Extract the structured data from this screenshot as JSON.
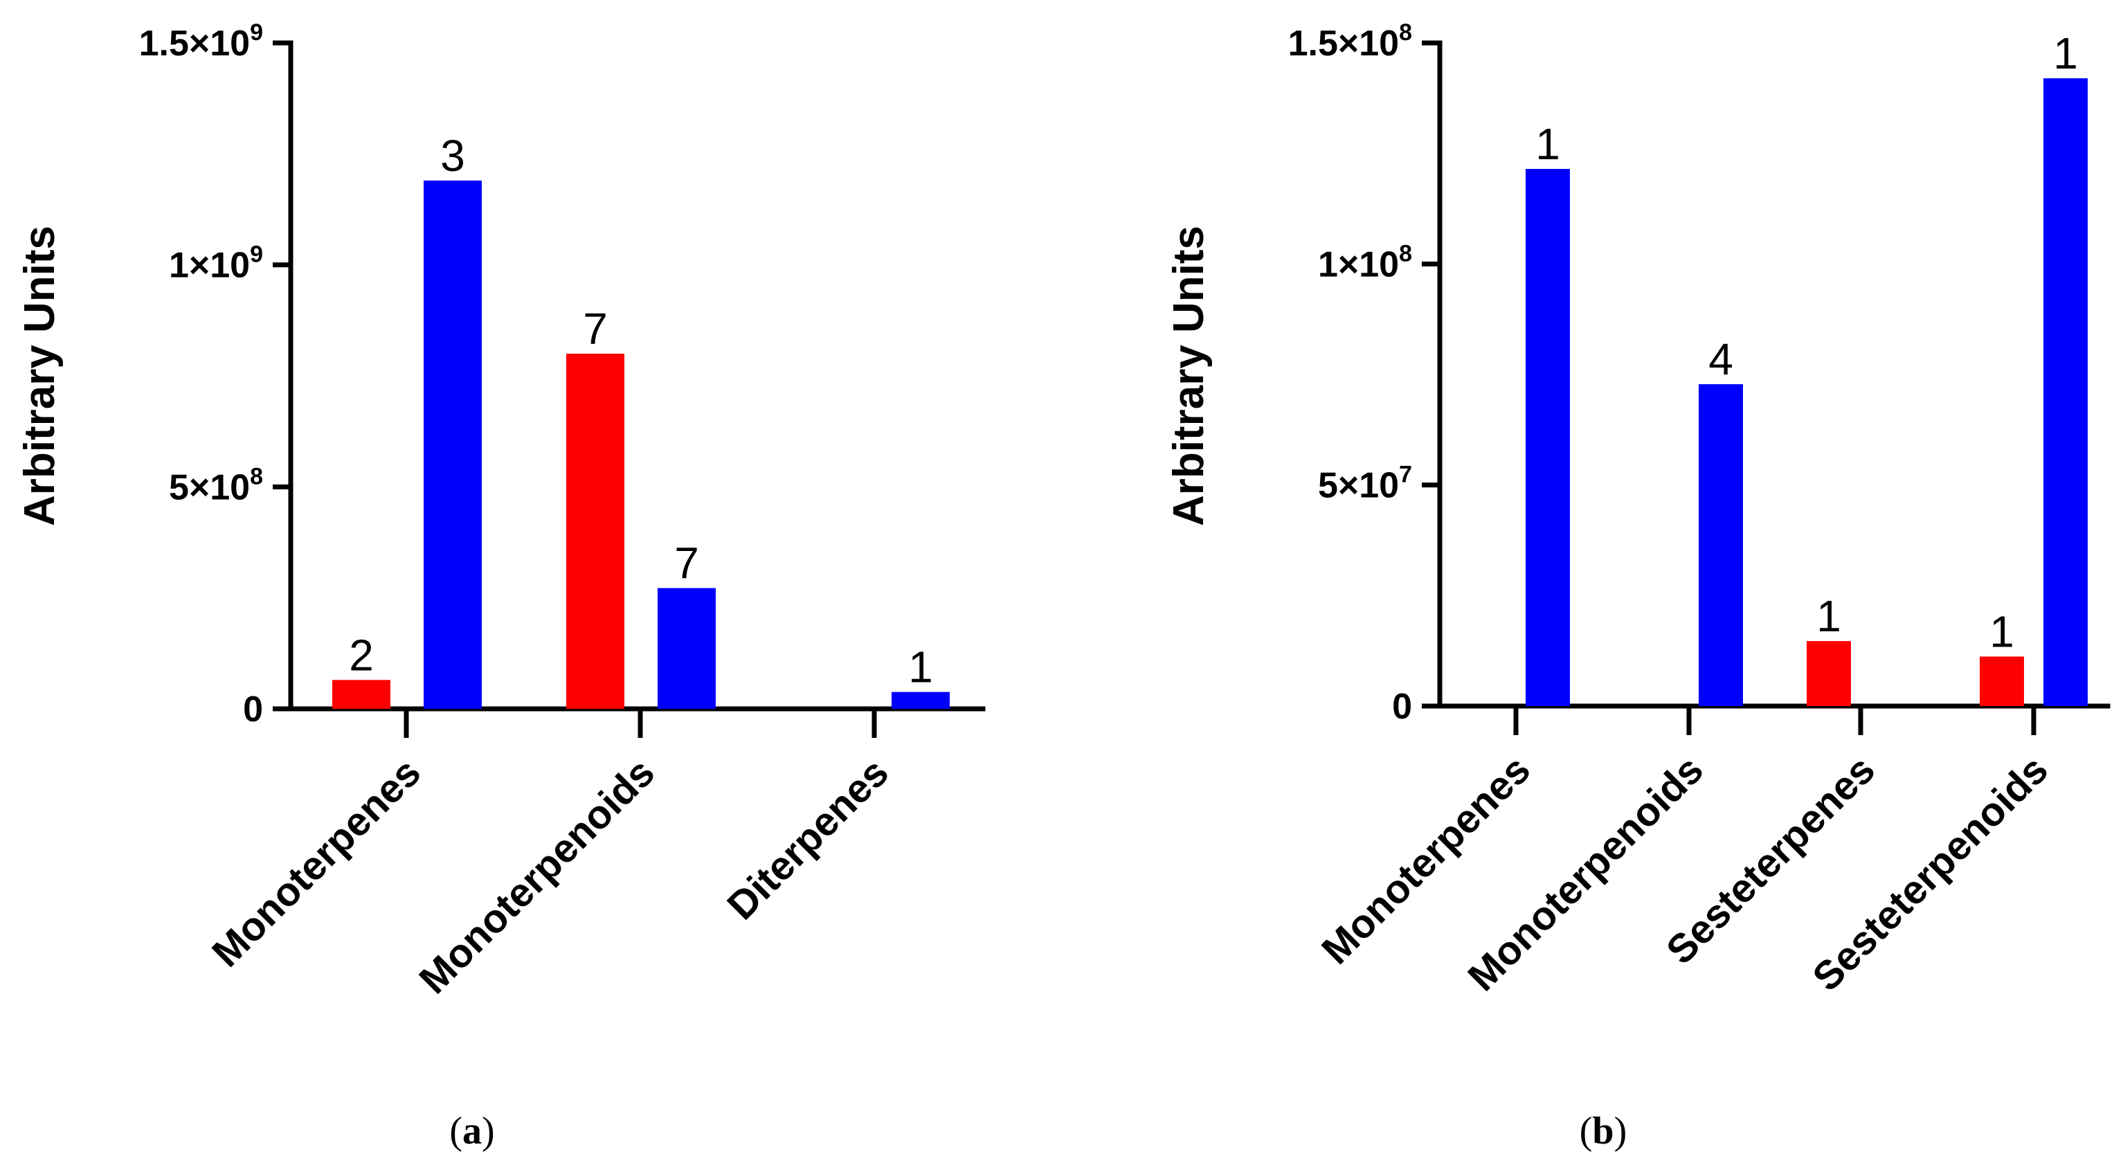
{
  "chart_data": [
    {
      "id": "a",
      "type": "bar",
      "panel_label": "(a)",
      "panel_letter": "a",
      "ylabel": "Arbitrary Units",
      "ylim": [
        0,
        1500000000
      ],
      "yticks": [
        {
          "value": 0,
          "mantissa": "0",
          "exponent": ""
        },
        {
          "value": 500000000,
          "mantissa": "5×10",
          "exponent": "8"
        },
        {
          "value": 1000000000,
          "mantissa": "1×10",
          "exponent": "9"
        },
        {
          "value": 1500000000,
          "mantissa": "1.5×10",
          "exponent": "9"
        }
      ],
      "categories": [
        "Monoterpenes",
        "Monoterpenoids",
        "Diterpenes"
      ],
      "series": [
        {
          "name": "red",
          "color": "#ff0000",
          "values": [
            65000000,
            800000000,
            0
          ],
          "labels": [
            "2",
            "7",
            ""
          ]
        },
        {
          "name": "blue",
          "color": "#0000ff",
          "values": [
            1190000000,
            272000000,
            38000000
          ],
          "labels": [
            "3",
            "7",
            "1"
          ]
        }
      ]
    },
    {
      "id": "b",
      "type": "bar",
      "panel_label": "(b)",
      "panel_letter": "b",
      "ylabel": "Arbitrary Units",
      "ylim": [
        0,
        150000000
      ],
      "yticks": [
        {
          "value": 0,
          "mantissa": "0",
          "exponent": ""
        },
        {
          "value": 50000000,
          "mantissa": "5×10",
          "exponent": "7"
        },
        {
          "value": 100000000,
          "mantissa": "1×10",
          "exponent": "8"
        },
        {
          "value": 150000000,
          "mantissa": "1.5×10",
          "exponent": "8"
        }
      ],
      "categories": [
        "Monoterpenes",
        "Monoterpenoids",
        "Sesteterpenes",
        "Sesteterpenoids"
      ],
      "series": [
        {
          "name": "red",
          "color": "#ff0000",
          "values": [
            0,
            0,
            14700000,
            11200000
          ],
          "labels": [
            "",
            "",
            "1",
            "1"
          ]
        },
        {
          "name": "blue",
          "color": "#0000ff",
          "values": [
            121500000,
            72800000,
            0,
            142000000
          ],
          "labels": [
            "1",
            "4",
            "",
            "1"
          ]
        }
      ]
    }
  ]
}
